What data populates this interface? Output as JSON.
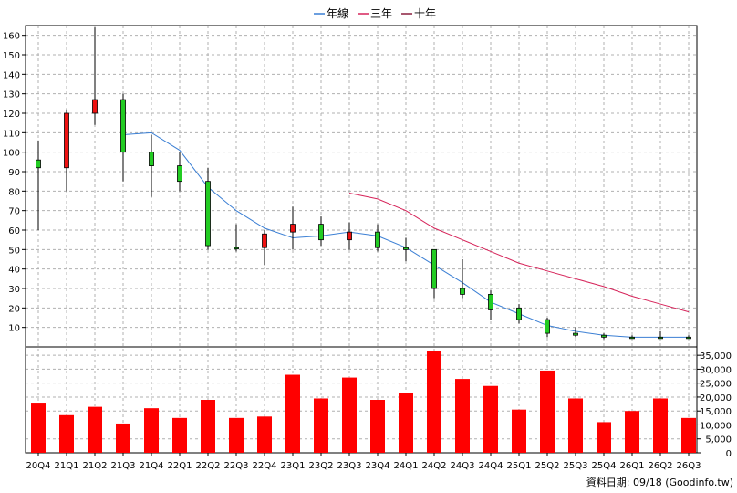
{
  "chart_data": {
    "type": "candlestick",
    "categories": [
      "20Q4",
      "21Q1",
      "21Q2",
      "21Q3",
      "21Q4",
      "22Q1",
      "22Q2",
      "22Q3",
      "22Q4",
      "23Q1",
      "23Q2",
      "23Q3",
      "23Q4",
      "24Q1",
      "24Q2",
      "24Q3",
      "24Q4",
      "25Q1",
      "25Q2",
      "25Q3",
      "25Q4",
      "26Q1",
      "26Q2",
      "26Q3"
    ],
    "price_ylim": [
      0,
      165
    ],
    "price_yticks": [
      10,
      20,
      30,
      40,
      50,
      60,
      70,
      80,
      90,
      100,
      110,
      120,
      130,
      140,
      150,
      160
    ],
    "candles": [
      {
        "o": 92,
        "h": 106,
        "l": 60,
        "c": 96
      },
      {
        "o": 120,
        "h": 122,
        "l": 80,
        "c": 92
      },
      {
        "o": 127,
        "h": 164,
        "l": 114,
        "c": 120
      },
      {
        "o": 100,
        "h": 130,
        "l": 85,
        "c": 127
      },
      {
        "o": 93,
        "h": 109,
        "l": 77,
        "c": 100
      },
      {
        "o": 85,
        "h": 100,
        "l": 80,
        "c": 93
      },
      {
        "o": 52,
        "h": 92,
        "l": 50,
        "c": 85
      },
      {
        "o": 51,
        "h": 63,
        "l": 49,
        "c": 51
      },
      {
        "o": 58,
        "h": 60,
        "l": 42,
        "c": 51
      },
      {
        "o": 63,
        "h": 72,
        "l": 50,
        "c": 59
      },
      {
        "o": 55,
        "h": 67,
        "l": 52,
        "c": 63
      },
      {
        "o": 59,
        "h": 64,
        "l": 50,
        "c": 55
      },
      {
        "o": 51,
        "h": 63,
        "l": 49,
        "c": 59
      },
      {
        "o": 50,
        "h": 56,
        "l": 44,
        "c": 51
      },
      {
        "o": 30,
        "h": 50,
        "l": 25,
        "c": 50
      },
      {
        "o": 27,
        "h": 45,
        "l": 25,
        "c": 30
      },
      {
        "o": 19,
        "h": 29,
        "l": 14,
        "c": 27
      },
      {
        "o": 14,
        "h": 22,
        "l": 12,
        "c": 20
      },
      {
        "o": 7,
        "h": 15,
        "l": 5,
        "c": 14
      },
      {
        "o": 6,
        "h": 10,
        "l": 5,
        "c": 7
      },
      {
        "o": 5,
        "h": 7,
        "l": 4,
        "c": 6
      },
      {
        "o": 5,
        "h": 6,
        "l": 5,
        "c": 5
      },
      {
        "o": 5,
        "h": 8,
        "l": 5,
        "c": 5
      },
      {
        "o": 5,
        "h": 6,
        "l": 5,
        "c": 5
      }
    ],
    "lines": [
      {
        "name": "年線",
        "color": "#3b7fd4",
        "values": [
          null,
          null,
          null,
          109,
          110,
          101,
          82,
          70,
          61,
          56,
          57,
          59,
          57,
          51,
          42,
          33,
          23,
          17,
          11,
          8,
          6,
          5,
          5,
          5
        ]
      },
      {
        "name": "三年",
        "color": "#d6245a",
        "values": [
          null,
          null,
          null,
          null,
          null,
          null,
          null,
          null,
          null,
          null,
          null,
          79,
          76,
          70,
          61,
          55,
          49,
          43,
          39,
          35,
          31,
          26,
          22,
          18
        ]
      },
      {
        "name": "十年",
        "color": "#8b1f3f",
        "values": []
      }
    ],
    "volume": [
      18000,
      13500,
      16500,
      10500,
      16000,
      12500,
      19000,
      12500,
      13000,
      28000,
      19500,
      27000,
      19000,
      21500,
      36500,
      26500,
      24000,
      15500,
      29500,
      19500,
      11000,
      15000,
      19500,
      12500
    ],
    "volume_ylim": [
      0,
      38000
    ],
    "volume_yticks": [
      0,
      5000,
      10000,
      15000,
      20000,
      25000,
      30000,
      35000
    ],
    "volume_tick_labels": [
      "0",
      "5,000",
      "10,000",
      "15,000",
      "20,000",
      "25,000",
      "30,000",
      "35,000"
    ],
    "colors": {
      "up": "#22cc22",
      "down": "#ee1111",
      "volume": "#ff0000",
      "grid": "#b0b0b0"
    }
  },
  "footer_note": "資料日期: 09/18  (Goodinfo.tw)"
}
